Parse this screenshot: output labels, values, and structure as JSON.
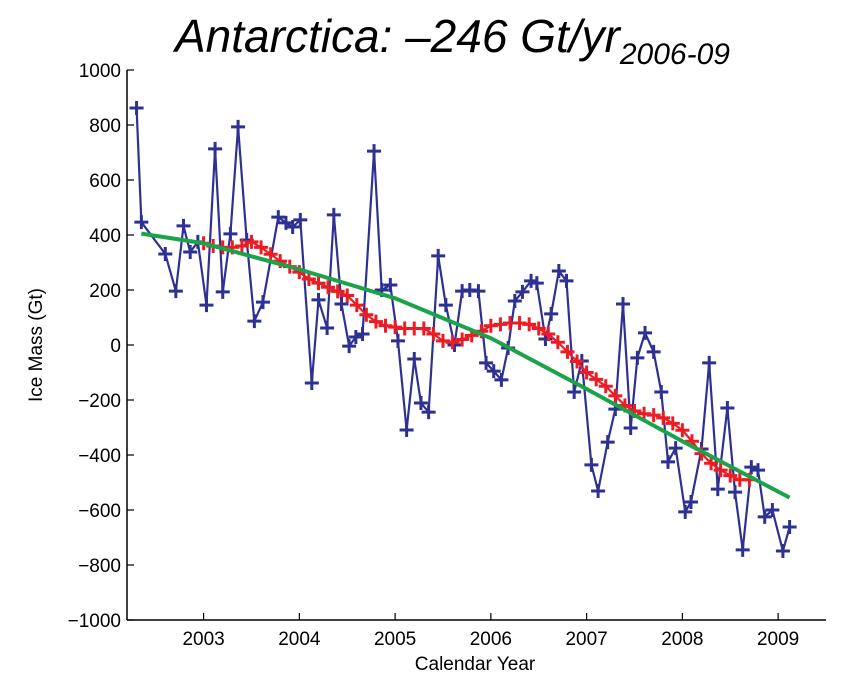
{
  "chart_data": {
    "type": "line",
    "title": "Antarctica:  –246 Gt/yr",
    "title_subscript": "2006-09",
    "x_label": "Calendar Year",
    "y_label": "Ice Mass (Gt)",
    "xlim": [
      2002.2,
      2009.5
    ],
    "xticks": [
      2003,
      2004,
      2005,
      2006,
      2007,
      2008,
      2009
    ],
    "ylim": [
      -1000,
      1000
    ],
    "yticks": [
      {
        "value": -1000,
        "label": "−1000"
      },
      {
        "value": -800,
        "label": "−800"
      },
      {
        "value": -600,
        "label": "−600"
      },
      {
        "value": -400,
        "label": "−400"
      },
      {
        "value": -200,
        "label": "−200"
      },
      0,
      200,
      400,
      600,
      800,
      1000
    ],
    "series": [
      {
        "color": "#2e3192",
        "marker": "+",
        "x": [
          2002.3,
          2002.35,
          2002.6,
          2002.71,
          2002.79,
          2002.86,
          2002.94,
          2003.03,
          2003.12,
          2003.2,
          2003.28,
          2003.36,
          2003.45,
          2003.53,
          2003.62,
          2003.78,
          2003.86,
          2003.93,
          2004.01,
          2004.13,
          2004.2,
          2004.29,
          2004.36,
          2004.44,
          2004.52,
          2004.59,
          2004.66,
          2004.78,
          2004.86,
          2004.95,
          2005.03,
          2005.12,
          2005.2,
          2005.27,
          2005.35,
          2005.45,
          2005.53,
          2005.62,
          2005.7,
          2005.78,
          2005.87,
          2005.95,
          2006.03,
          2006.11,
          2006.18,
          2006.25,
          2006.33,
          2006.42,
          2006.48,
          2006.57,
          2006.63,
          2006.71,
          2006.79,
          2006.87,
          2006.95,
          2007.05,
          2007.12,
          2007.22,
          2007.3,
          2007.38,
          2007.46,
          2007.53,
          2007.61,
          2007.7,
          2007.78,
          2007.85,
          2007.93,
          2008.03,
          2008.09,
          2008.2,
          2008.28,
          2008.37,
          2008.47,
          2008.55,
          2008.63,
          2008.72,
          2008.79,
          2008.86,
          2008.94,
          2009.05,
          2009.12
        ],
        "values": [
          862,
          447,
          331,
          196,
          433,
          338,
          375,
          145,
          713,
          193,
          404,
          793,
          382,
          87,
          156,
          465,
          444,
          429,
          455,
          -138,
          164,
          62,
          473,
          149,
          -4,
          29,
          40,
          705,
          200,
          218,
          15,
          -309,
          -51,
          -211,
          -244,
          324,
          145,
          0,
          196,
          200,
          196,
          -65,
          -95,
          -127,
          -11,
          160,
          193,
          233,
          225,
          22,
          113,
          269,
          233,
          -171,
          -58,
          -436,
          -531,
          -353,
          -233,
          149,
          -302,
          -47,
          44,
          -25,
          -171,
          -425,
          -375,
          -607,
          -571,
          -378,
          -65,
          -524,
          -229,
          -535,
          -745,
          -444,
          -455,
          -625,
          -600,
          -749,
          -662
        ]
      },
      {
        "color": "#ed1c24",
        "marker": "+",
        "x": [
          2003.0,
          2003.1,
          2003.2,
          2003.3,
          2003.4,
          2003.5,
          2003.6,
          2003.7,
          2003.8,
          2003.9,
          2004.0,
          2004.1,
          2004.2,
          2004.3,
          2004.4,
          2004.5,
          2004.6,
          2004.7,
          2004.8,
          2004.9,
          2005.0,
          2005.1,
          2005.2,
          2005.3,
          2005.4,
          2005.5,
          2005.6,
          2005.7,
          2005.8,
          2005.9,
          2006.0,
          2006.1,
          2006.2,
          2006.3,
          2006.4,
          2006.5,
          2006.6,
          2006.7,
          2006.8,
          2006.9,
          2007.0,
          2007.1,
          2007.2,
          2007.3,
          2007.4,
          2007.5,
          2007.6,
          2007.7,
          2007.8,
          2007.9,
          2008.0,
          2008.1,
          2008.2,
          2008.3,
          2008.4,
          2008.5,
          2008.6,
          2008.7
        ],
        "values": [
          370,
          360,
          355,
          355,
          360,
          375,
          355,
          330,
          305,
          285,
          265,
          240,
          225,
          210,
          195,
          180,
          145,
          110,
          85,
          70,
          65,
          60,
          60,
          60,
          40,
          15,
          10,
          20,
          35,
          50,
          70,
          75,
          80,
          80,
          75,
          60,
          40,
          10,
          -25,
          -60,
          -100,
          -125,
          -150,
          -185,
          -220,
          -240,
          -250,
          -255,
          -265,
          -285,
          -310,
          -350,
          -395,
          -430,
          -455,
          -475,
          -490,
          -490
        ]
      },
      {
        "color": "#1aa34a",
        "x": [
          2002.35,
          2003.0,
          2004.0,
          2005.0,
          2006.0,
          2007.0,
          2008.0,
          2009.12
        ],
        "values": [
          405,
          370,
          275,
          170,
          25,
          -160,
          -350,
          -555
        ]
      }
    ]
  }
}
